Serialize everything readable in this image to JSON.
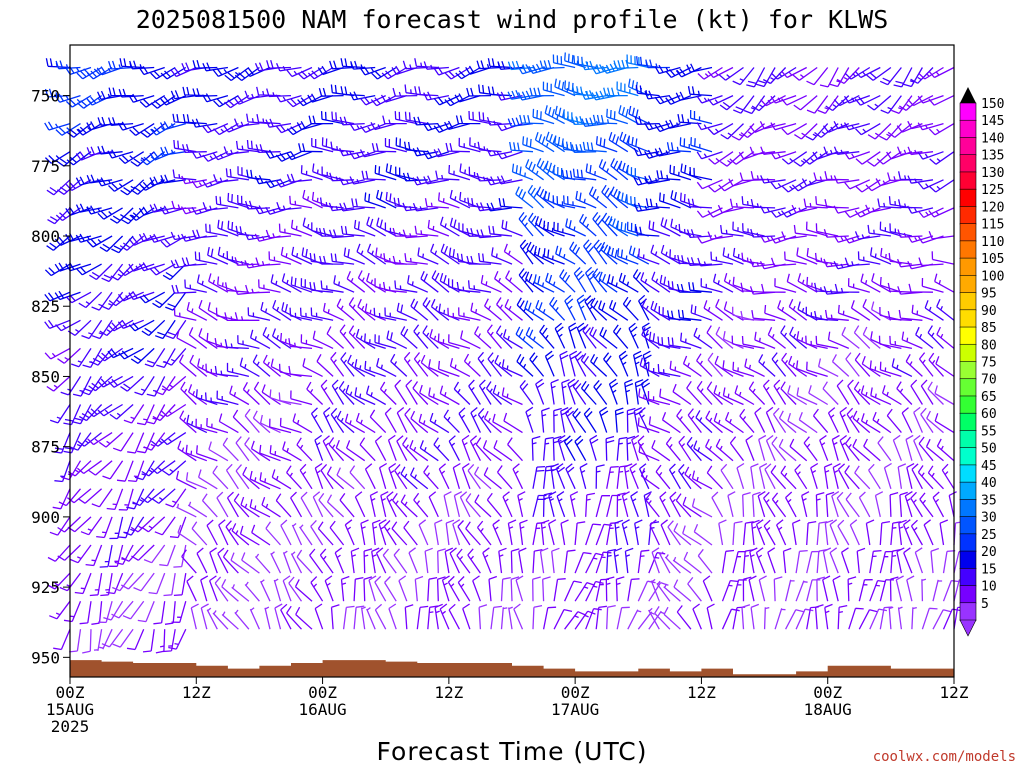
{
  "chart_data": {
    "type": "wind-barb profile",
    "title": "2025081500 NAM forecast wind profile (kt) for KLWS",
    "xlabel": "Forecast Time (UTC)",
    "credit": "coolwx.com/models",
    "x_ticks": [
      {
        "line1": "00Z",
        "line2": "15AUG",
        "line3": "2025",
        "hour": 0
      },
      {
        "line1": "12Z",
        "line2": "",
        "line3": "",
        "hour": 12
      },
      {
        "line1": "00Z",
        "line2": "16AUG",
        "line3": "",
        "hour": 24
      },
      {
        "line1": "12Z",
        "line2": "",
        "line3": "",
        "hour": 36
      },
      {
        "line1": "00Z",
        "line2": "17AUG",
        "line3": "",
        "hour": 48
      },
      {
        "line1": "12Z",
        "line2": "",
        "line3": "",
        "hour": 60
      },
      {
        "line1": "00Z",
        "line2": "18AUG",
        "line3": "",
        "hour": 72
      },
      {
        "line1": "12Z",
        "line2": "",
        "line3": "",
        "hour": 84
      }
    ],
    "xlim": [
      0,
      84
    ],
    "y_ticks": [
      750,
      775,
      800,
      825,
      850,
      875,
      900,
      925,
      950
    ],
    "ylim": [
      957,
      732
    ],
    "y_inverted": true,
    "colorbar_labels": [
      150,
      145,
      140,
      135,
      130,
      125,
      120,
      115,
      110,
      105,
      100,
      95,
      90,
      85,
      80,
      75,
      70,
      65,
      60,
      55,
      50,
      45,
      40,
      35,
      30,
      25,
      20,
      15,
      10,
      5
    ],
    "colorbar_colors": [
      "#ff00ff",
      "#ff00cc",
      "#ff0099",
      "#ff0066",
      "#ff0033",
      "#ff0000",
      "#ff2a00",
      "#ff5500",
      "#ff7700",
      "#ff9900",
      "#ffaa00",
      "#ffcc00",
      "#ffdd00",
      "#ffff00",
      "#ccff00",
      "#99ff33",
      "#66ff33",
      "#33ff33",
      "#00ff66",
      "#00ffaa",
      "#00ffcc",
      "#00ddff",
      "#00aaff",
      "#0077ff",
      "#0055ff",
      "#0033ff",
      "#0000ee",
      "#4400ff",
      "#7700ff",
      "#9933ff"
    ],
    "surface_pressure": [
      {
        "hour": 0,
        "hPa": 951
      },
      {
        "hour": 3,
        "hPa": 951.5
      },
      {
        "hour": 6,
        "hPa": 952
      },
      {
        "hour": 12,
        "hPa": 953
      },
      {
        "hour": 15,
        "hPa": 954
      },
      {
        "hour": 18,
        "hPa": 953
      },
      {
        "hour": 21,
        "hPa": 952
      },
      {
        "hour": 24,
        "hPa": 951
      },
      {
        "hour": 27,
        "hPa": 951
      },
      {
        "hour": 30,
        "hPa": 951.5
      },
      {
        "hour": 33,
        "hPa": 952
      },
      {
        "hour": 42,
        "hPa": 953
      },
      {
        "hour": 45,
        "hPa": 954
      },
      {
        "hour": 48,
        "hPa": 955
      },
      {
        "hour": 54,
        "hPa": 954
      },
      {
        "hour": 57,
        "hPa": 955
      },
      {
        "hour": 60,
        "hPa": 954
      },
      {
        "hour": 63,
        "hPa": 956
      },
      {
        "hour": 69,
        "hPa": 955
      },
      {
        "hour": 72,
        "hPa": 953
      },
      {
        "hour": 75,
        "hPa": 953
      },
      {
        "hour": 78,
        "hPa": 954
      },
      {
        "hour": 84,
        "hPa": 953
      }
    ],
    "surface_color": "#a0522d",
    "profile_levels_hPa": [
      740,
      750,
      760,
      770,
      780,
      790,
      800,
      810,
      820,
      830,
      840,
      850,
      860,
      870,
      880,
      890,
      900,
      910,
      920,
      930,
      940
    ],
    "barb_time_step_hours": 1,
    "wind_regimes": [
      {
        "from_hour": 0,
        "to_hour": 12,
        "upper": {
          "dir": 255,
          "spd": 25
        },
        "lower": {
          "dir": 200,
          "spd": 10
        }
      },
      {
        "from_hour": 12,
        "to_hour": 24,
        "upper": {
          "dir": 250,
          "spd": 20
        },
        "lower": {
          "dir": 330,
          "spd": 8
        }
      },
      {
        "from_hour": 24,
        "to_hour": 44,
        "upper": {
          "dir": 255,
          "spd": 20
        },
        "lower": {
          "dir": 350,
          "spd": 10
        }
      },
      {
        "from_hour": 44,
        "to_hour": 56,
        "upper": {
          "dir": 270,
          "spd": 35
        },
        "lower": {
          "dir": 20,
          "spd": 10
        }
      },
      {
        "from_hour": 56,
        "to_hour": 62,
        "upper": {
          "dir": 260,
          "spd": 25
        },
        "lower": {
          "dir": 330,
          "spd": 8
        }
      },
      {
        "from_hour": 62,
        "to_hour": 84,
        "upper": {
          "dir": 225,
          "spd": 15
        },
        "lower": {
          "dir": 10,
          "spd": 10
        }
      }
    ]
  }
}
